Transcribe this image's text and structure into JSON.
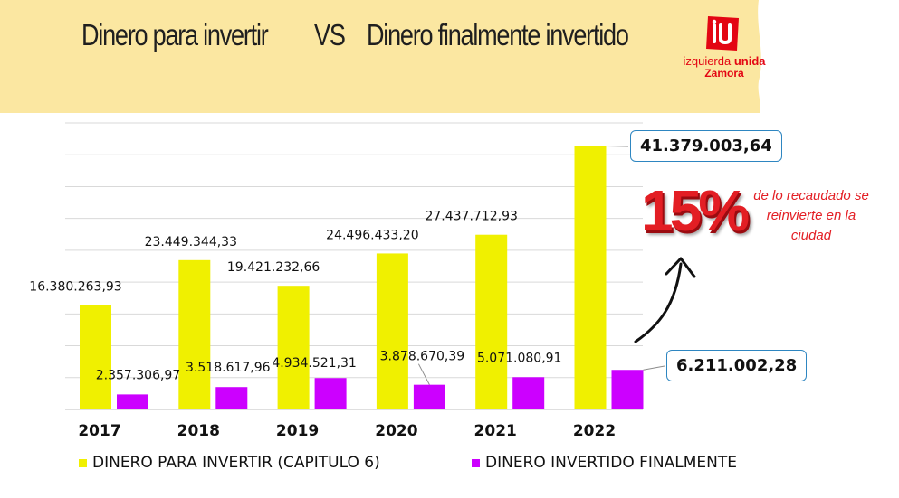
{
  "header": {
    "title_left": "Dinero para invertir",
    "title_vs": "VS",
    "title_right": "Dinero finalmente invertido",
    "logo": {
      "icon": "iu-logo-mark",
      "line1_a": "izquierda",
      "line1_b": "unida",
      "line2": "Zamora"
    }
  },
  "chart_data": {
    "type": "bar",
    "categories": [
      "2017",
      "2018",
      "2019",
      "2020",
      "2021",
      "2022"
    ],
    "series": [
      {
        "name": "DINERO PARA INVERTIR (CAPITULO 6)",
        "color": "#f0f000",
        "values": [
          16380263.93,
          23449344.33,
          19421232.66,
          24496433.2,
          27437712.93,
          41379003.64
        ],
        "labels": [
          "16.380.263,93",
          "23.449.344,33",
          "19.421.232,66",
          "24.496.433,20",
          "27.437.712,93",
          "41.379.003,64"
        ]
      },
      {
        "name": "DINERO INVERTIDO FINALMENTE",
        "color": "#cc00ff",
        "values": [
          2357306.97,
          3518617.96,
          4934521.31,
          3878670.39,
          5071080.91,
          6211002.28
        ],
        "labels": [
          "2.357.306,97",
          "3.518.617,96",
          "4.934.521,31",
          "3.878.670,39",
          "5.071.080,91",
          "6.211.002,28"
        ]
      }
    ],
    "ylim": [
      0,
      45000000
    ],
    "grid": true,
    "legend_position": "bottom"
  },
  "callout": {
    "percent": "15%",
    "note": "de lo recaudado se reinvierte  en la ciudad",
    "arrow_icon": "curved-arrow-icon"
  },
  "colors": {
    "banner": "#fbe7a1",
    "accent_red": "#e31e24",
    "box_border": "#2e86c1"
  }
}
